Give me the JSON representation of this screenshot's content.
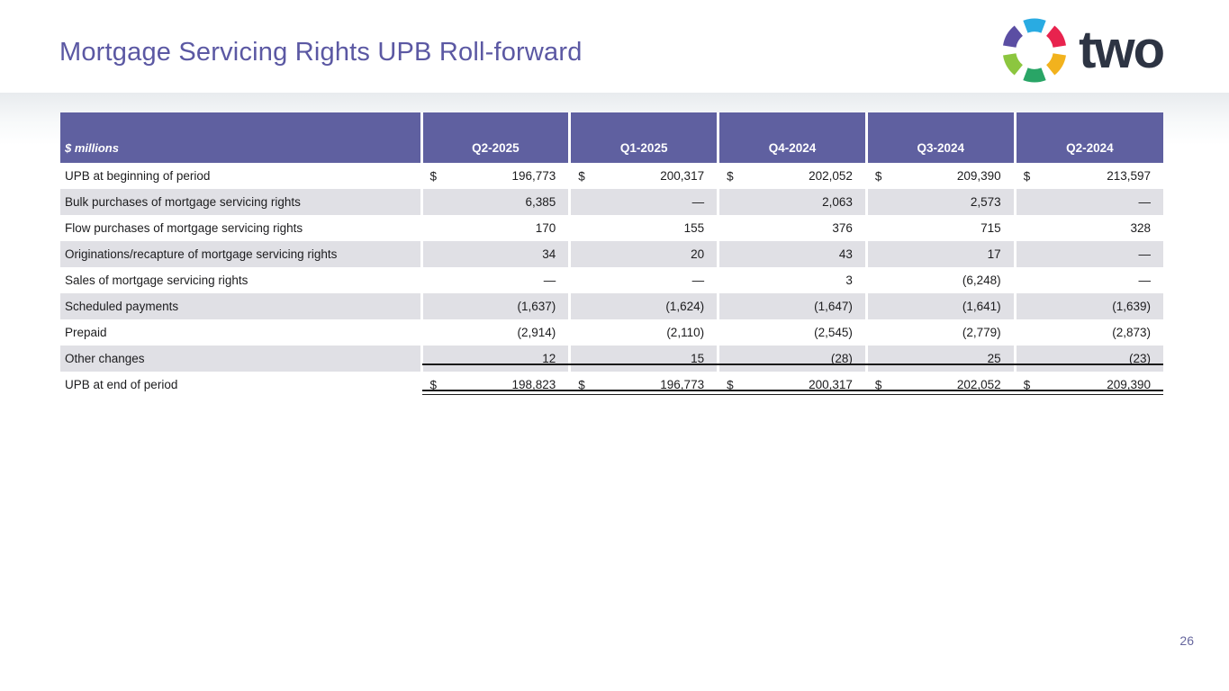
{
  "slide": {
    "title": "Mortgage Servicing Rights UPB Roll-forward",
    "page_number": "26"
  },
  "logo": {
    "text": "two",
    "mark_colors": [
      "#29ABE2",
      "#E8234E",
      "#F2B21D",
      "#29A566",
      "#8CC63F",
      "#5B4EA3"
    ]
  },
  "table": {
    "unit_label": "$ millions",
    "currency_symbol": "$",
    "columns": [
      "Q2-2025",
      "Q1-2025",
      "Q4-2024",
      "Q3-2024",
      "Q2-2024"
    ],
    "rows": [
      {
        "label": "UPB at beginning of period",
        "dollar": true,
        "values": [
          "196,773",
          "200,317",
          "202,052",
          "209,390",
          "213,597"
        ]
      },
      {
        "label": "Bulk purchases of mortgage servicing rights",
        "values": [
          "6,385",
          "—",
          "2,063",
          "2,573",
          "—"
        ]
      },
      {
        "label": "Flow purchases of mortgage servicing rights",
        "values": [
          "170",
          "155",
          "376",
          "715",
          "328"
        ]
      },
      {
        "label": "Originations/recapture of mortgage servicing rights",
        "values": [
          "34",
          "20",
          "43",
          "17",
          "—"
        ]
      },
      {
        "label": "Sales of mortgage servicing rights",
        "values": [
          "—",
          "—",
          "3",
          "(6,248)",
          "—"
        ]
      },
      {
        "label": "Scheduled payments",
        "values": [
          "(1,637)",
          "(1,624)",
          "(1,647)",
          "(1,641)",
          "(1,639)"
        ]
      },
      {
        "label": "Prepaid",
        "values": [
          "(2,914)",
          "(2,110)",
          "(2,545)",
          "(2,779)",
          "(2,873)"
        ]
      },
      {
        "label": "Other changes",
        "values": [
          "12",
          "15",
          "(28)",
          "25",
          "(23)"
        ]
      },
      {
        "label": "UPB at end of period",
        "dollar": true,
        "total": true,
        "values": [
          "198,823",
          "196,773",
          "200,317",
          "202,052",
          "209,390"
        ]
      }
    ]
  },
  "colors": {
    "header_bg": "#5F60A0",
    "shaded_row": "#E0E0E5",
    "title": "#5B58A3",
    "wordmark": "#2D3443",
    "page_number": "#67679E",
    "band_top": "#E8EBEE",
    "rule": "#1A1A1A",
    "text": "#1C1C1E"
  }
}
